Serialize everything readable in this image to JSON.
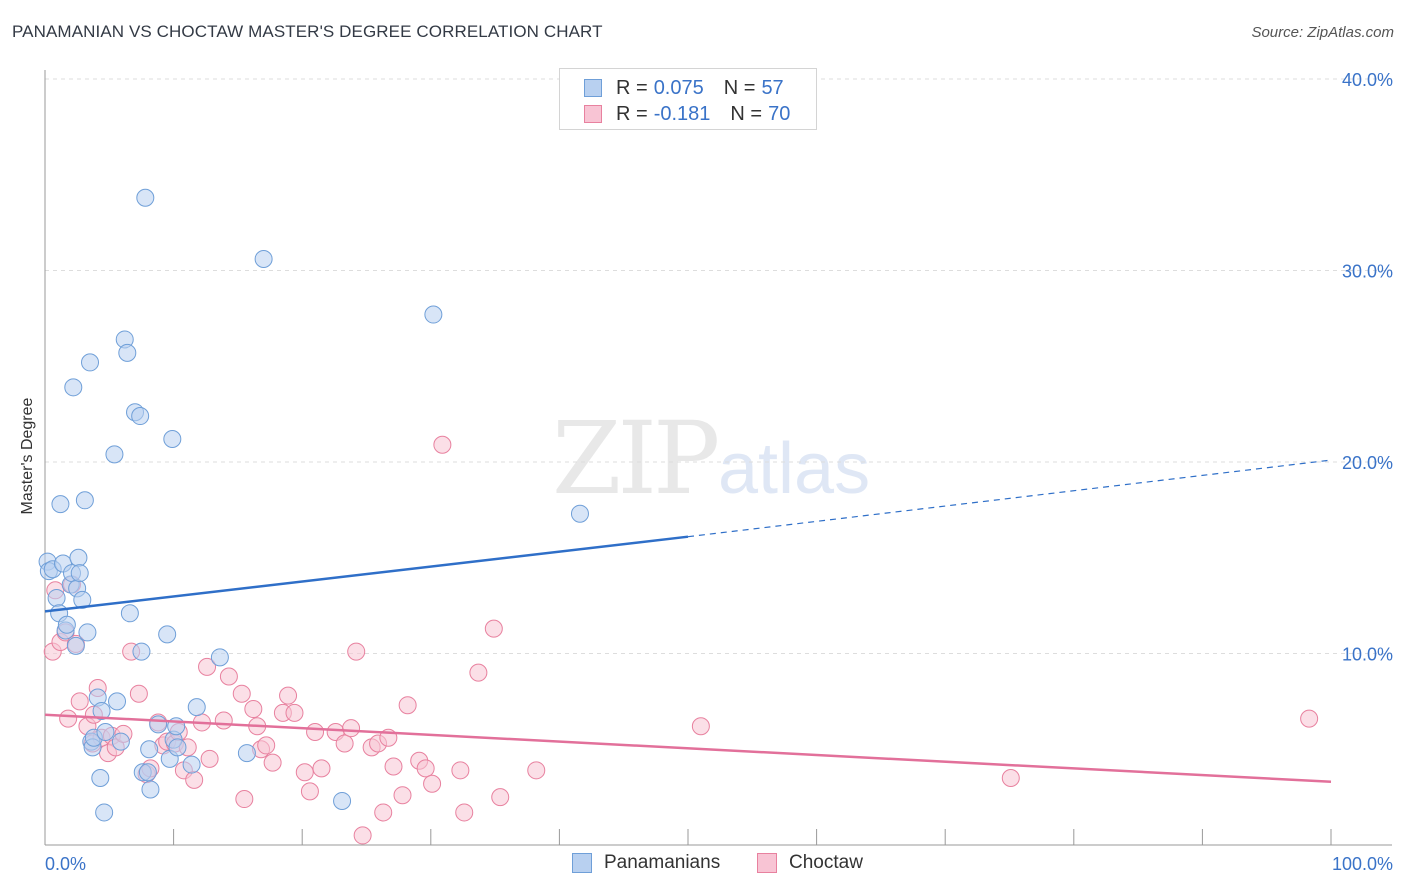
{
  "header": {
    "title": "PANAMANIAN VS CHOCTAW MASTER'S DEGREE CORRELATION CHART",
    "source": "Source: ZipAtlas.com"
  },
  "watermark": {
    "zip": "ZIP",
    "atlas": "atlas"
  },
  "legend": {
    "rows": [
      {
        "r_label": "R = ",
        "r_value": "0.075",
        "n_label": "N = ",
        "n_value": "57"
      },
      {
        "r_label": "R = ",
        "r_value": "-0.181",
        "n_label": "N = ",
        "n_value": "70"
      }
    ]
  },
  "bottom_legend": {
    "series1": "Panamanians",
    "series2": "Choctaw"
  },
  "colors": {
    "blue_fill": "#b8d0f0",
    "blue_stroke": "#6f9fd8",
    "blue_line": "#2f6fc8",
    "pink_fill": "#f8c4d4",
    "pink_stroke": "#e8819f",
    "pink_line": "#e2709a",
    "grid": "#dddddd",
    "tick_text": "#3a73c8"
  },
  "chart_data": {
    "type": "scatter",
    "title": "PANAMANIAN VS CHOCTAW MASTER'S DEGREE CORRELATION CHART",
    "xlabel": "",
    "ylabel": "Master's Degree",
    "xlim": [
      0,
      100
    ],
    "ylim": [
      0,
      40
    ],
    "x_tick_labels": [
      "0.0%",
      "100.0%"
    ],
    "y_ticks": [
      10,
      20,
      30,
      40
    ],
    "y_tick_labels": [
      "10.0%",
      "20.0%",
      "30.0%",
      "40.0%"
    ],
    "legend_position": "top-center",
    "series": [
      {
        "name": "Panamanians",
        "r": 0.075,
        "n": 57,
        "trend": {
          "x0": 0,
          "y0": 12.2,
          "x1": 50,
          "y1": 16.1,
          "dash_x1": 100,
          "dash_y1": 20.1
        },
        "points": [
          [
            0.2,
            14.8
          ],
          [
            0.3,
            14.3
          ],
          [
            0.6,
            14.4
          ],
          [
            0.9,
            12.9
          ],
          [
            1.1,
            12.1
          ],
          [
            1.2,
            17.8
          ],
          [
            1.4,
            14.7
          ],
          [
            1.6,
            11.2
          ],
          [
            1.7,
            11.5
          ],
          [
            2.0,
            13.6
          ],
          [
            2.1,
            14.2
          ],
          [
            2.2,
            23.9
          ],
          [
            2.4,
            10.4
          ],
          [
            2.5,
            13.4
          ],
          [
            2.6,
            15.0
          ],
          [
            2.7,
            14.2
          ],
          [
            2.9,
            12.8
          ],
          [
            3.1,
            18.0
          ],
          [
            3.3,
            11.1
          ],
          [
            3.5,
            25.2
          ],
          [
            3.6,
            5.4
          ],
          [
            3.7,
            5.1
          ],
          [
            3.8,
            5.6
          ],
          [
            4.1,
            7.7
          ],
          [
            4.3,
            3.5
          ],
          [
            4.4,
            7.0
          ],
          [
            4.6,
            1.7
          ],
          [
            4.7,
            5.9
          ],
          [
            5.4,
            20.4
          ],
          [
            5.6,
            7.5
          ],
          [
            5.9,
            5.4
          ],
          [
            6.2,
            26.4
          ],
          [
            6.4,
            25.7
          ],
          [
            6.6,
            12.1
          ],
          [
            7.0,
            22.6
          ],
          [
            7.4,
            22.4
          ],
          [
            7.5,
            10.1
          ],
          [
            7.6,
            3.8
          ],
          [
            7.8,
            33.8
          ],
          [
            8.0,
            3.8
          ],
          [
            8.1,
            5.0
          ],
          [
            8.2,
            2.9
          ],
          [
            8.8,
            6.3
          ],
          [
            9.5,
            11.0
          ],
          [
            9.7,
            4.5
          ],
          [
            9.9,
            21.2
          ],
          [
            10.0,
            5.5
          ],
          [
            10.2,
            6.2
          ],
          [
            10.3,
            5.1
          ],
          [
            11.4,
            4.2
          ],
          [
            11.8,
            7.2
          ],
          [
            13.6,
            9.8
          ],
          [
            15.7,
            4.8
          ],
          [
            17.0,
            30.6
          ],
          [
            23.1,
            2.3
          ],
          [
            30.2,
            27.7
          ],
          [
            41.6,
            17.3
          ]
        ]
      },
      {
        "name": "Choctaw",
        "r": -0.181,
        "n": 70,
        "trend": {
          "x0": 0,
          "y0": 6.8,
          "x1": 100,
          "y1": 3.3
        },
        "points": [
          [
            0.6,
            10.1
          ],
          [
            0.8,
            13.3
          ],
          [
            1.2,
            10.6
          ],
          [
            1.6,
            11.1
          ],
          [
            1.8,
            6.6
          ],
          [
            2.1,
            13.6
          ],
          [
            2.4,
            10.5
          ],
          [
            2.7,
            7.5
          ],
          [
            3.3,
            6.2
          ],
          [
            3.7,
            5.3
          ],
          [
            3.8,
            6.8
          ],
          [
            4.1,
            8.2
          ],
          [
            4.4,
            5.6
          ],
          [
            4.9,
            4.8
          ],
          [
            5.2,
            5.7
          ],
          [
            5.5,
            5.1
          ],
          [
            6.1,
            5.8
          ],
          [
            6.7,
            10.1
          ],
          [
            7.3,
            7.9
          ],
          [
            7.9,
            3.7
          ],
          [
            8.2,
            4.0
          ],
          [
            8.8,
            6.4
          ],
          [
            9.2,
            5.2
          ],
          [
            9.5,
            5.4
          ],
          [
            10.1,
            5.3
          ],
          [
            10.4,
            5.9
          ],
          [
            10.8,
            3.9
          ],
          [
            11.1,
            5.1
          ],
          [
            11.6,
            3.4
          ],
          [
            12.2,
            6.4
          ],
          [
            12.6,
            9.3
          ],
          [
            12.8,
            4.5
          ],
          [
            13.9,
            6.5
          ],
          [
            14.3,
            8.8
          ],
          [
            15.3,
            7.9
          ],
          [
            15.5,
            2.4
          ],
          [
            16.2,
            7.1
          ],
          [
            16.5,
            6.2
          ],
          [
            16.8,
            5.0
          ],
          [
            17.2,
            5.2
          ],
          [
            17.7,
            4.3
          ],
          [
            18.5,
            6.9
          ],
          [
            18.9,
            7.8
          ],
          [
            19.4,
            6.9
          ],
          [
            20.2,
            3.8
          ],
          [
            20.6,
            2.8
          ],
          [
            21.0,
            5.9
          ],
          [
            21.5,
            4.0
          ],
          [
            22.6,
            5.9
          ],
          [
            23.3,
            5.3
          ],
          [
            23.8,
            6.1
          ],
          [
            24.2,
            10.1
          ],
          [
            24.7,
            0.5
          ],
          [
            25.4,
            5.1
          ],
          [
            25.9,
            5.3
          ],
          [
            26.3,
            1.7
          ],
          [
            26.7,
            5.6
          ],
          [
            27.1,
            4.1
          ],
          [
            27.8,
            2.6
          ],
          [
            28.2,
            7.3
          ],
          [
            29.1,
            4.4
          ],
          [
            29.6,
            4.0
          ],
          [
            30.1,
            3.2
          ],
          [
            30.9,
            20.9
          ],
          [
            32.3,
            3.9
          ],
          [
            32.6,
            1.7
          ],
          [
            33.7,
            9.0
          ],
          [
            34.9,
            11.3
          ],
          [
            35.4,
            2.5
          ],
          [
            38.2,
            3.9
          ]
        ],
        "extra_points": [
          [
            51.0,
            6.2
          ],
          [
            75.1,
            3.5
          ],
          [
            98.3,
            6.6
          ]
        ]
      }
    ]
  }
}
